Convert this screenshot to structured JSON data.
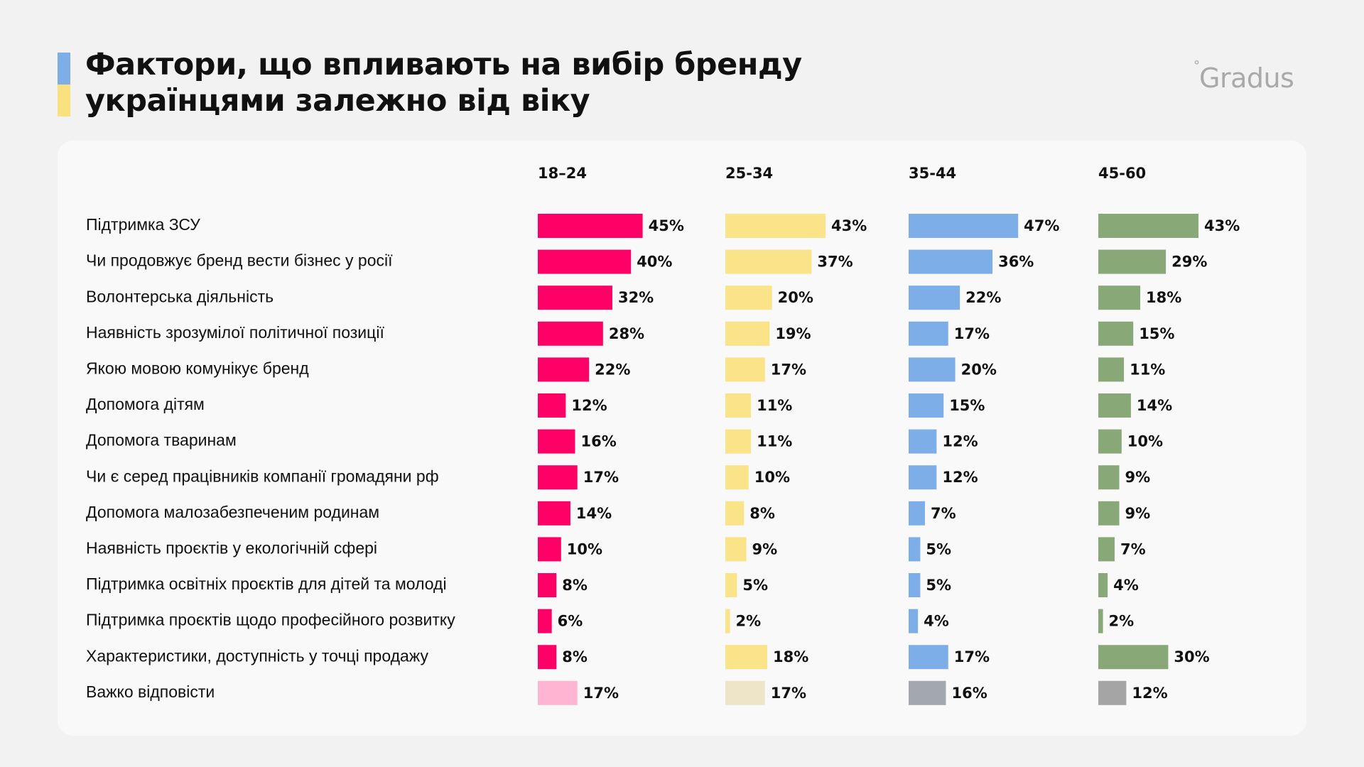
{
  "title": {
    "line1": "Фактори, що впливають на вибір бренду",
    "line2": "українцями залежно від віку"
  },
  "brand": {
    "name": "Gradus",
    "mark": "°"
  },
  "colors": {
    "background": "#f2f2f2",
    "card": "#f9f9f9",
    "accent_blue": "#7eaee8",
    "accent_yellow": "#fbe07e"
  },
  "chart_data": {
    "type": "bar",
    "orientation": "horizontal",
    "title": "Фактори, що впливають на вибір бренду українцями залежно від віку",
    "categories": [
      "Підтримка ЗСУ",
      "Чи продовжує бренд вести бізнес у росії",
      "Волонтерська діяльність",
      "Наявність зрозумілої політичної позиції",
      "Якою мовою комунікує бренд",
      "Допомога дітям",
      "Допомога тваринам",
      "Чи є серед працівників компанії громадяни рф",
      "Допомога малозабезпеченим родинам",
      "Наявність проєктів у екологічній сфері",
      "Підтримка освітніх проєктів для дітей та молоді",
      "Підтримка проєктів щодо професійного розвитку",
      "Характеристики, доступність у точці продажу",
      "Важко відповісти"
    ],
    "series": [
      {
        "name": "18–24",
        "color": "#ff0066",
        "muted_color": "#ffb5d2",
        "values": [
          45,
          40,
          32,
          28,
          22,
          12,
          16,
          17,
          14,
          10,
          8,
          6,
          8,
          17
        ]
      },
      {
        "name": "25-34",
        "color": "#fbe38a",
        "muted_color": "#eee5c8",
        "values": [
          43,
          37,
          20,
          19,
          17,
          11,
          11,
          10,
          8,
          9,
          5,
          2,
          18,
          17
        ]
      },
      {
        "name": "35-44",
        "color": "#7eaee8",
        "muted_color": "#a3a8b0",
        "values": [
          47,
          36,
          22,
          17,
          20,
          15,
          12,
          12,
          7,
          5,
          5,
          4,
          17,
          16
        ]
      },
      {
        "name": "45-60",
        "color": "#88a878",
        "muted_color": "#a5a5a5",
        "values": [
          43,
          29,
          18,
          15,
          11,
          14,
          10,
          9,
          9,
          7,
          4,
          2,
          30,
          12
        ]
      }
    ],
    "value_suffix": "%",
    "muted_category": "Важко відповісти"
  }
}
